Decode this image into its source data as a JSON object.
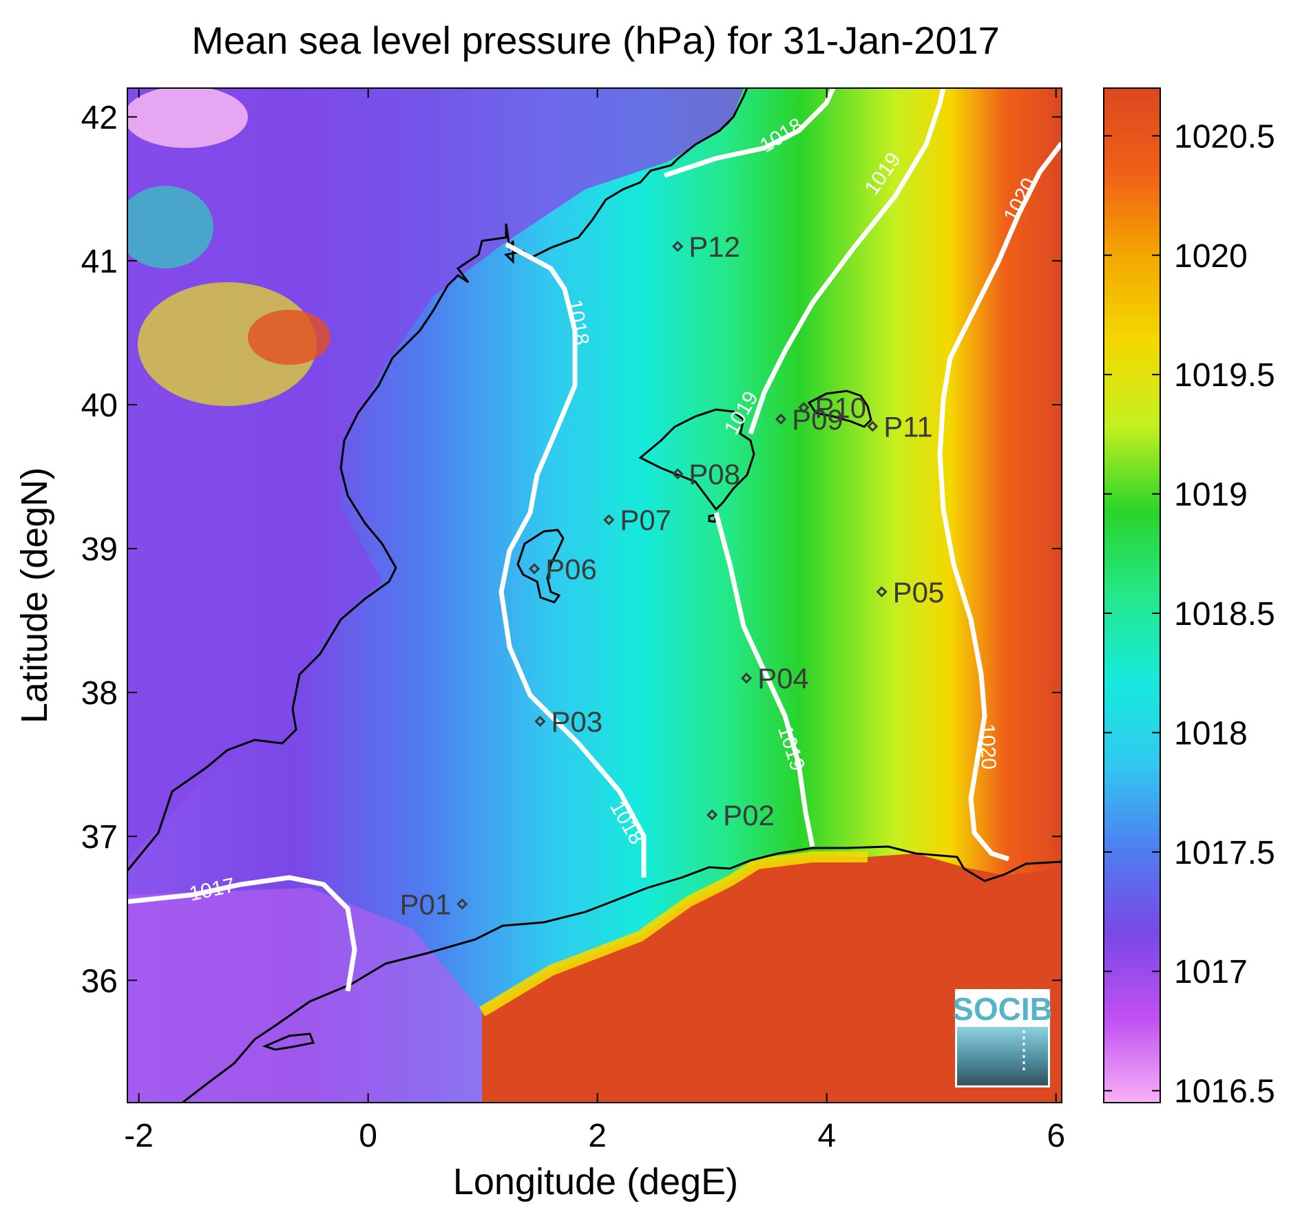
{
  "map": {
    "title": "Mean sea level pressure (hPa) for 31-Jan-2017",
    "xlabel": "Longitude (degE)",
    "ylabel": "Latitude (degN)",
    "xlim": [
      -2.1,
      6.05
    ],
    "ylim": [
      35.15,
      42.2
    ],
    "xticks": [
      "-2",
      "0",
      "2",
      "4",
      "6"
    ],
    "yticks": [
      "36",
      "37",
      "38",
      "39",
      "40",
      "41",
      "42"
    ],
    "colorbar": {
      "range": [
        1016.45,
        1020.7
      ],
      "ticks": [
        "1016.5",
        "1017",
        "1017.5",
        "1018",
        "1018.5",
        "1019",
        "1019.5",
        "1020",
        "1020.5"
      ],
      "colors": [
        "#f7b0f7",
        "#c050f2",
        "#7a48e6",
        "#4e7ef0",
        "#32c8f0",
        "#16eadc",
        "#24e88a",
        "#2ad42a",
        "#c4f020",
        "#f4d800",
        "#f4a800",
        "#f06018",
        "#dc4820"
      ]
    },
    "contour_labels": [
      "1017",
      "1018",
      "1018",
      "1018",
      "1019",
      "1019",
      "1019",
      "1020",
      "1020"
    ],
    "stations": [
      {
        "label": "P01",
        "lon": 0.82,
        "lat": 36.53
      },
      {
        "label": "P02",
        "lon": 3.0,
        "lat": 37.15
      },
      {
        "label": "P03",
        "lon": 1.5,
        "lat": 37.8
      },
      {
        "label": "P04",
        "lon": 3.3,
        "lat": 38.1
      },
      {
        "label": "P05",
        "lon": 4.48,
        "lat": 38.7
      },
      {
        "label": "P06",
        "lon": 1.45,
        "lat": 38.86
      },
      {
        "label": "P07",
        "lon": 2.1,
        "lat": 39.2
      },
      {
        "label": "P08",
        "lon": 2.7,
        "lat": 39.52
      },
      {
        "label": "P09",
        "lon": 3.6,
        "lat": 39.9
      },
      {
        "label": "P10",
        "lon": 3.8,
        "lat": 39.98
      },
      {
        "label": "P11",
        "lon": 4.4,
        "lat": 39.85
      },
      {
        "label": "P12",
        "lon": 2.7,
        "lat": 41.1
      }
    ],
    "logo": "SOCIB"
  }
}
